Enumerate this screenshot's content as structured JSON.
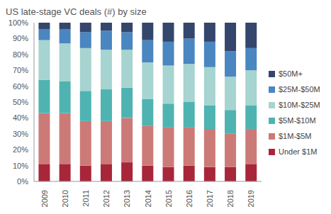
{
  "chart_data": {
    "type": "bar",
    "title": "US late-stage VC deals (#) by size",
    "categories": [
      "2009",
      "2010",
      "2011",
      "2012",
      "2013",
      "2014",
      "2015",
      "2016",
      "2017",
      "2018",
      "2019"
    ],
    "series": [
      {
        "name": "Under $1M",
        "color": "#a8263a",
        "values": [
          11,
          11,
          10,
          11,
          12,
          10,
          9,
          10,
          9,
          9,
          11
        ]
      },
      {
        "name": "$1M-$5M",
        "color": "#cc7a78",
        "values": [
          32,
          32,
          28,
          27,
          28,
          25,
          25,
          24,
          24,
          21,
          22
        ]
      },
      {
        "name": "$5M-$10M",
        "color": "#4fb3b1",
        "values": [
          21,
          20,
          19,
          20,
          19,
          17,
          15,
          16,
          15,
          15,
          15
        ]
      },
      {
        "name": "$10M-$25M",
        "color": "#a6d4d0",
        "values": [
          25,
          24,
          27,
          25,
          24,
          23,
          24,
          24,
          24,
          21,
          22
        ]
      },
      {
        "name": "$25M-$50M",
        "color": "#4a86c0",
        "values": [
          7,
          9,
          10,
          12,
          11,
          14,
          15,
          16,
          16,
          16,
          14
        ]
      },
      {
        "name": "$50M+",
        "color": "#34466b",
        "values": [
          4,
          4,
          6,
          5,
          6,
          11,
          12,
          10,
          12,
          18,
          16
        ]
      }
    ],
    "ylim": [
      0,
      100
    ],
    "yticks": [
      {
        "value": 0,
        "label": "0%"
      },
      {
        "value": 10,
        "label": "10%"
      },
      {
        "value": 20,
        "label": "20%"
      },
      {
        "value": 30,
        "label": "30%"
      },
      {
        "value": 40,
        "label": "40%"
      },
      {
        "value": 50,
        "label": "50%"
      },
      {
        "value": 60,
        "label": "60%"
      },
      {
        "value": 70,
        "label": "70%"
      },
      {
        "value": 80,
        "label": "80%"
      },
      {
        "value": 90,
        "label": "90%"
      },
      {
        "value": 100,
        "label": "100%"
      }
    ],
    "stacked": true,
    "grid": false,
    "legend": "right"
  }
}
